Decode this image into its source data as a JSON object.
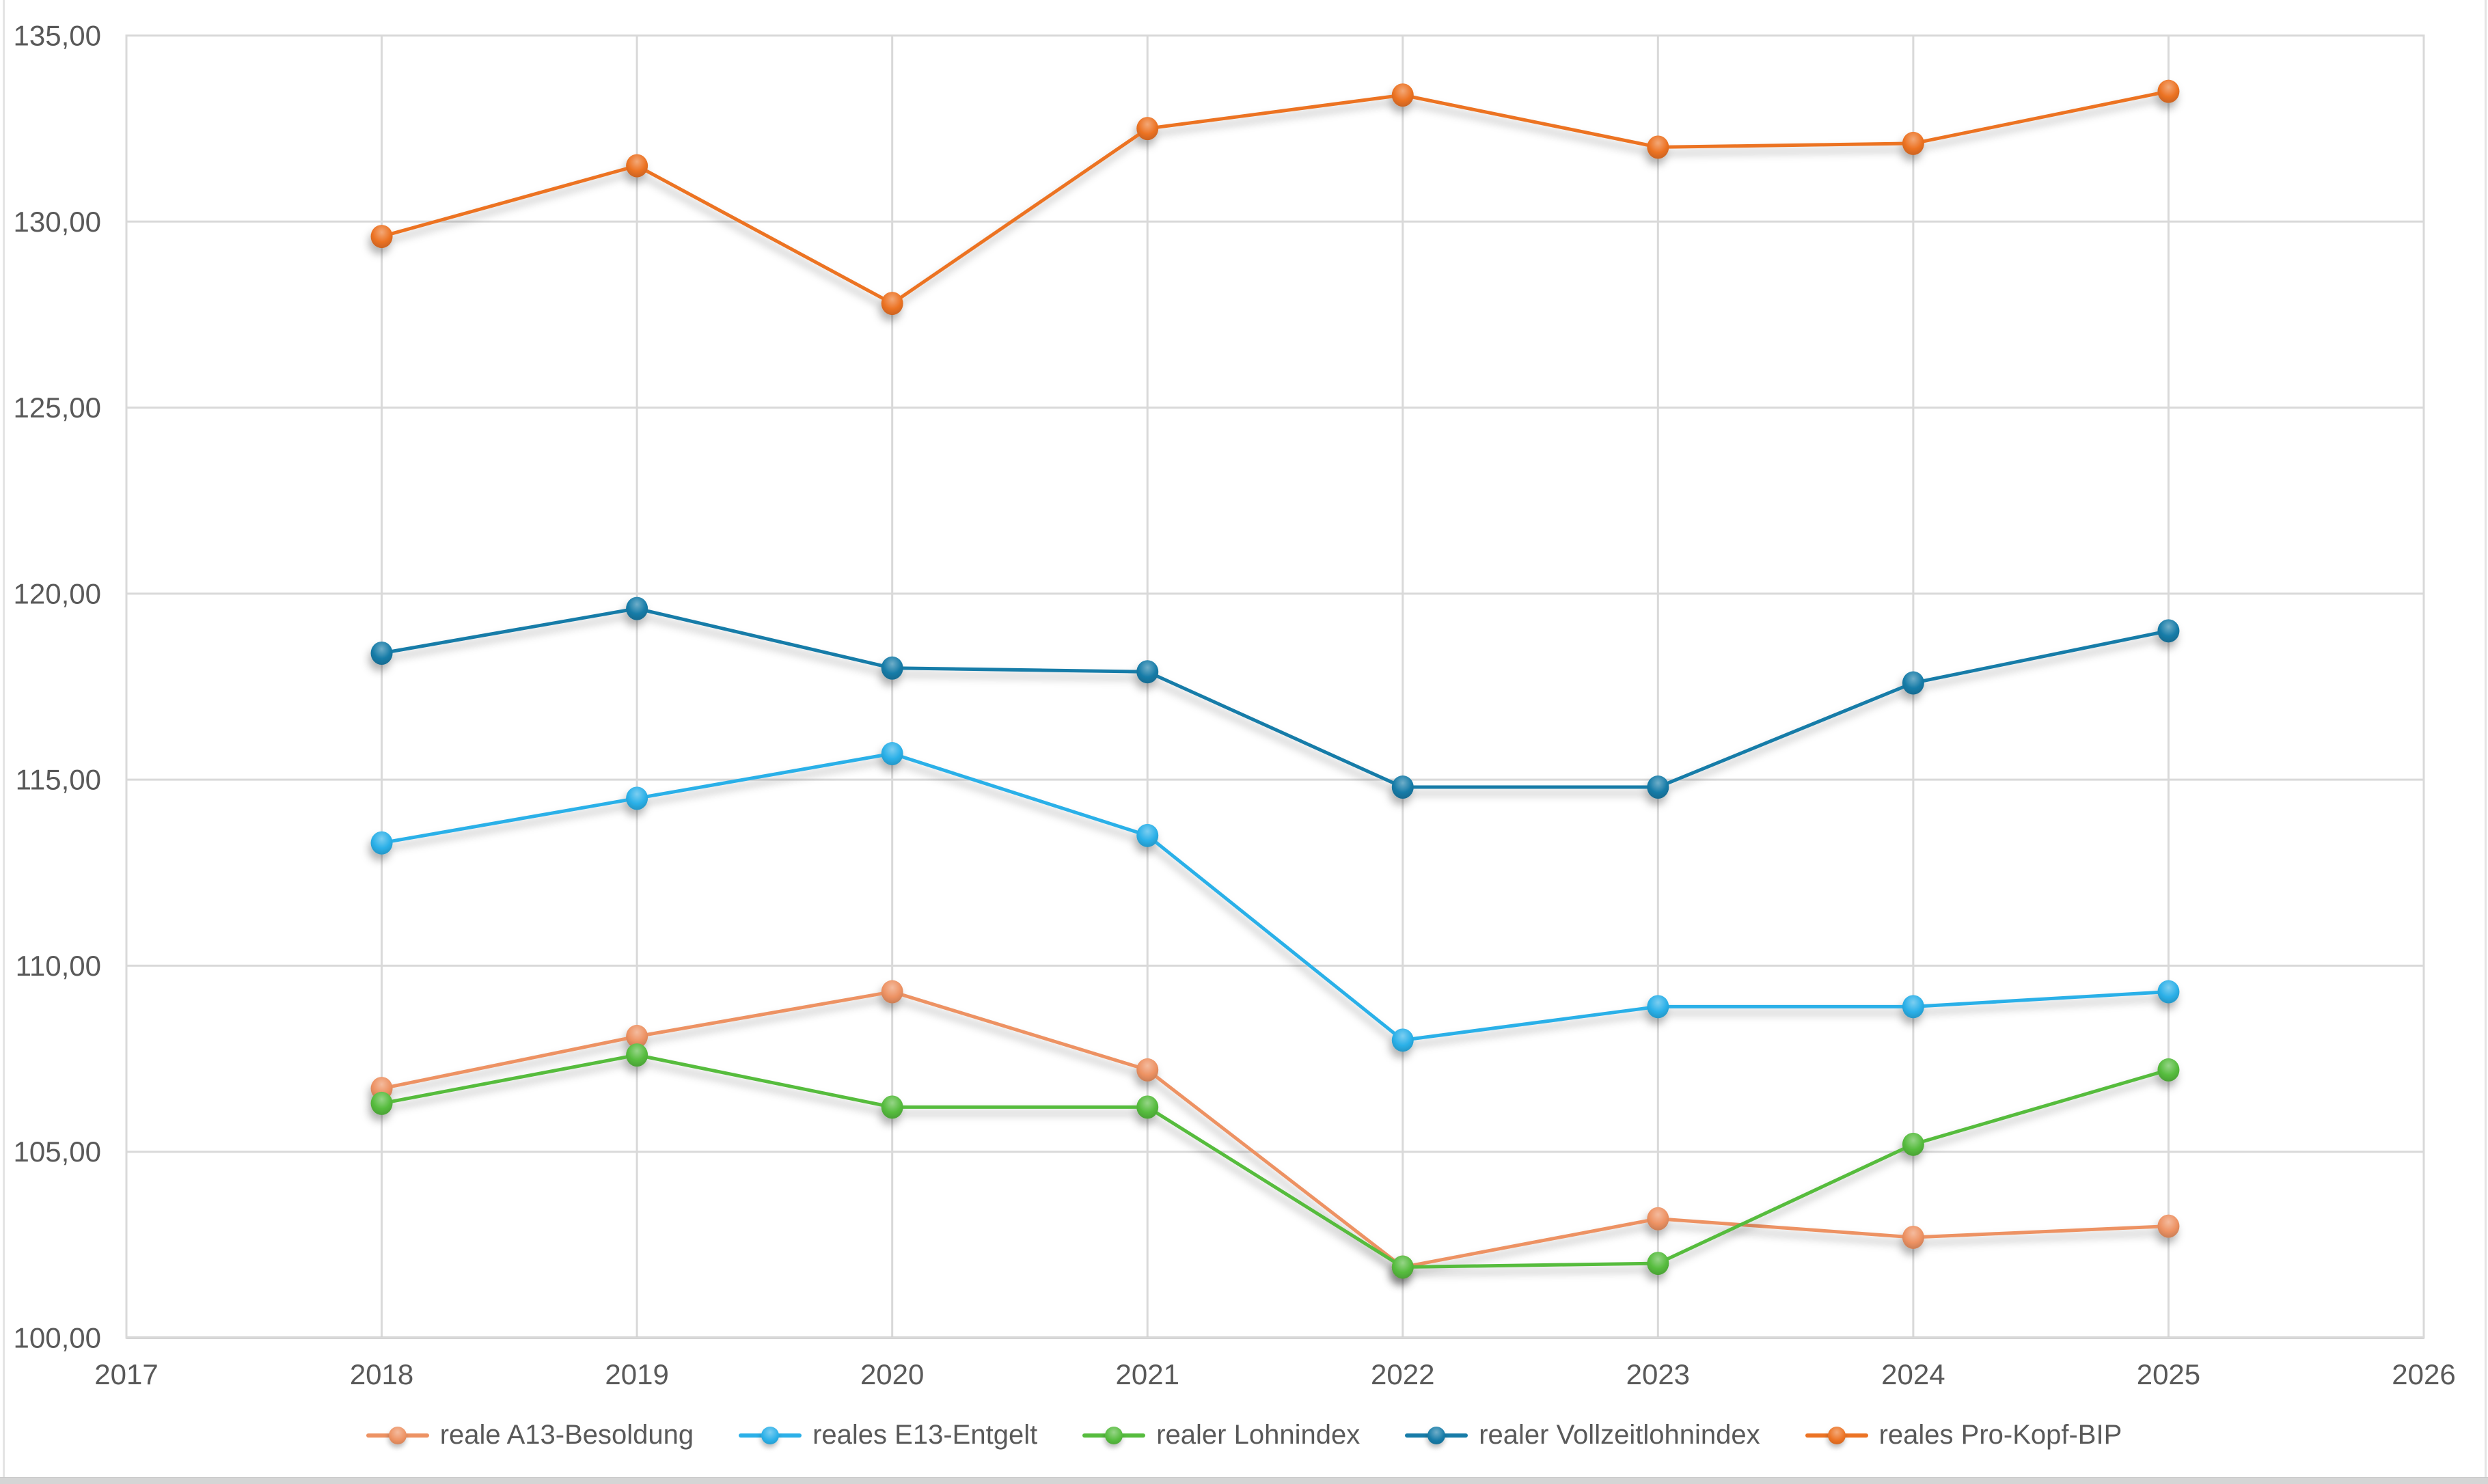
{
  "window": {
    "background": "#ffffff",
    "edge_color": "#d5d5d5"
  },
  "chart_data": {
    "type": "line",
    "x": [
      2018,
      2019,
      2020,
      2021,
      2022,
      2023,
      2024,
      2025
    ],
    "series": [
      {
        "name": "reale A13-Besoldung",
        "color": "#ED9263",
        "values": [
          106.7,
          108.1,
          109.3,
          107.2,
          101.9,
          103.2,
          102.7,
          103.0
        ]
      },
      {
        "name": "reales E13-Entgelt",
        "color": "#2BB0E8",
        "values": [
          113.3,
          114.5,
          115.7,
          113.5,
          108.0,
          108.9,
          108.9,
          109.3
        ]
      },
      {
        "name": "realer Lohnindex",
        "color": "#56BC3E",
        "values": [
          106.3,
          107.6,
          106.2,
          106.2,
          101.9,
          102.0,
          105.2,
          107.2
        ]
      },
      {
        "name": "realer Vollzeitlohnindex",
        "color": "#177CA8",
        "values": [
          118.4,
          119.6,
          118.0,
          117.9,
          114.8,
          114.8,
          117.6,
          119.0
        ]
      },
      {
        "name": "reales Pro-Kopf-BIP",
        "color": "#EC7324",
        "values": [
          129.6,
          131.5,
          127.8,
          132.5,
          133.4,
          132.0,
          132.1,
          133.5
        ]
      }
    ],
    "xlim": [
      2017,
      2026
    ],
    "ylim": [
      100,
      135
    ],
    "y_step": 5,
    "x_step": 1,
    "grid": true,
    "legend_position": "bottom",
    "x_tick_labels": [
      "2017",
      "2018",
      "2019",
      "2020",
      "2021",
      "2022",
      "2023",
      "2024",
      "2025",
      "2026"
    ],
    "y_tick_labels": [
      "100,00",
      "105,00",
      "110,00",
      "115,00",
      "120,00",
      "125,00",
      "130,00",
      "135,00"
    ],
    "title": "",
    "xlabel": "",
    "ylabel": "",
    "grid_color": "#d9d9d9",
    "axis_line_color": "#c9c9c9",
    "tick_label_color": "#595959"
  }
}
